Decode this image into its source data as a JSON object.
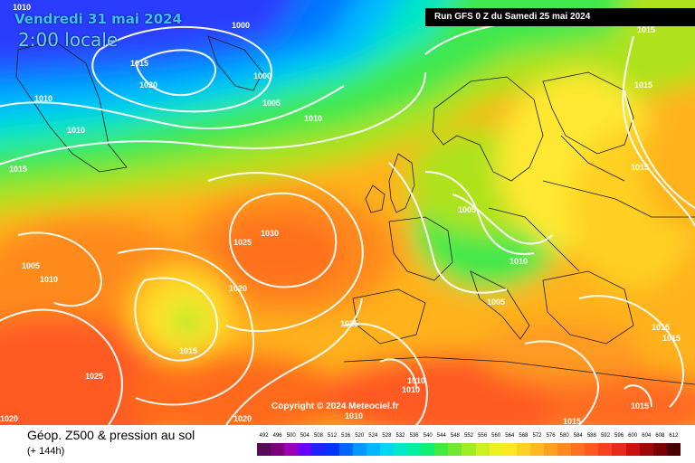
{
  "header": {
    "date_label": "Vendredi 31 mai 2024",
    "time_label": "2:00 locale",
    "run_label": "Run GFS 0 Z du Samedi 25 mai 2024"
  },
  "copyright": "Copyright © 2024 Meteociel.fr",
  "legend": {
    "title": "Géop. Z500 & pression au sol",
    "subtitle": "(+ 144h)",
    "values": [
      "492",
      "496",
      "500",
      "504",
      "508",
      "512",
      "516",
      "520",
      "524",
      "528",
      "532",
      "536",
      "540",
      "544",
      "548",
      "552",
      "556",
      "560",
      "564",
      "568",
      "572",
      "576",
      "580",
      "584",
      "588",
      "592",
      "596",
      "600",
      "604",
      "608",
      "612"
    ],
    "colors": [
      "#5a0a5a",
      "#7a007a",
      "#9b00b5",
      "#6a00ff",
      "#2222ff",
      "#0033ff",
      "#0066ff",
      "#0099ff",
      "#00b8ff",
      "#00d8f0",
      "#00e8c8",
      "#00f0a0",
      "#10f070",
      "#40ea40",
      "#70e830",
      "#a0ee20",
      "#ccf020",
      "#eef020",
      "#ffe820",
      "#ffd020",
      "#ffb820",
      "#ffa020",
      "#ff8820",
      "#ff7020",
      "#ff5820",
      "#f84020",
      "#e82818",
      "#cc1010",
      "#a00808",
      "#780000",
      "#4a0000"
    ]
  },
  "isobars": [
    {
      "label": "1010"
    },
    {
      "label": "1000"
    },
    {
      "label": "1015"
    },
    {
      "label": "1020"
    },
    {
      "label": "1000"
    },
    {
      "label": "1010"
    },
    {
      "label": "1005"
    },
    {
      "label": "1010"
    },
    {
      "label": "1010"
    },
    {
      "label": "1015"
    },
    {
      "label": "1015"
    },
    {
      "label": "1015"
    },
    {
      "label": "1015"
    },
    {
      "label": "1005"
    },
    {
      "label": "1025"
    },
    {
      "label": "1030"
    },
    {
      "label": "1005"
    },
    {
      "label": "1010"
    },
    {
      "label": "1020"
    },
    {
      "label": "1010"
    },
    {
      "label": "1005"
    },
    {
      "label": "1015"
    },
    {
      "label": "1015"
    },
    {
      "label": "1015"
    },
    {
      "label": "1015"
    },
    {
      "label": "1025"
    },
    {
      "label": "1010"
    },
    {
      "label": "1010"
    },
    {
      "label": "1010"
    },
    {
      "label": "1020"
    },
    {
      "label": "1020"
    },
    {
      "label": "1015"
    },
    {
      "label": "1015"
    }
  ]
}
